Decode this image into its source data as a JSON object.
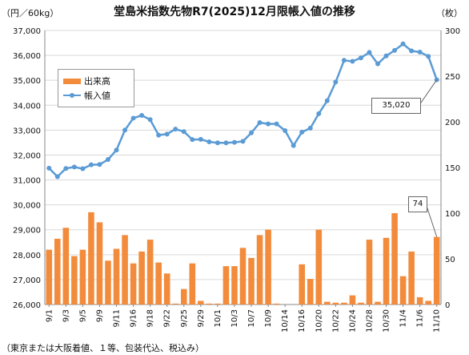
{
  "title": "堂島米指数先物R7(2025)12月限帳入値の推移",
  "left_unit": "（円／60kg）",
  "right_unit": "（枚）",
  "note": "（東京または大阪着値、１等、包装代込、税込み）",
  "legend": {
    "bar_label": "出来高",
    "line_label": "帳入値"
  },
  "callouts": {
    "last_price": "35,020",
    "last_volume": "74"
  },
  "colors": {
    "bar": "#f28c3c",
    "line": "#5b9bd5",
    "grid": "#d9d9d9"
  },
  "chart_data": {
    "type": "bar+line",
    "title": "堂島米指数先物R7(2025)12月限帳入値の推移",
    "x": [
      "9/1",
      "9/2",
      "9/3",
      "9/4",
      "9/5",
      "9/8",
      "9/9",
      "9/10",
      "9/11",
      "9/12",
      "9/16",
      "9/17",
      "9/18",
      "9/19",
      "9/22",
      "9/24",
      "9/25",
      "9/26",
      "9/29",
      "9/30",
      "10/1",
      "10/2",
      "10/3",
      "10/6",
      "10/7",
      "10/8",
      "10/9",
      "10/10",
      "10/14",
      "10/15",
      "10/16",
      "10/17",
      "10/20",
      "10/21",
      "10/22",
      "10/23",
      "10/24",
      "10/27",
      "10/28",
      "10/29",
      "10/30",
      "10/31",
      "11/4",
      "11/5",
      "11/6",
      "11/7",
      "11/10"
    ],
    "x_tick_labels": [
      "9/1",
      "9/3",
      "9/5",
      "9/9",
      "9/11",
      "9/16",
      "9/18",
      "9/22",
      "9/25",
      "9/29",
      "10/1",
      "10/3",
      "10/7",
      "10/9",
      "10/14",
      "10/16",
      "10/20",
      "10/22",
      "10/24",
      "10/28",
      "10/30",
      "11/4",
      "11/6",
      "11/10"
    ],
    "left_axis": {
      "label": "（円／60kg）",
      "ylim": [
        26000,
        37000
      ],
      "ticks": [
        26000,
        27000,
        28000,
        29000,
        30000,
        31000,
        32000,
        33000,
        34000,
        35000,
        36000,
        37000
      ],
      "tick_labels": [
        "26,000",
        "27,000",
        "28,000",
        "29,000",
        "30,000",
        "31,000",
        "32,000",
        "33,000",
        "34,000",
        "35,000",
        "36,000",
        "37,000"
      ]
    },
    "right_axis": {
      "label": "（枚）",
      "ylim": [
        0,
        300
      ],
      "ticks": [
        0,
        50,
        100,
        150,
        200,
        250,
        300
      ]
    },
    "grid": true,
    "legend_position": "top-left",
    "series": [
      {
        "name": "出来高",
        "type": "bar",
        "axis": "right",
        "values": [
          60,
          72,
          84,
          53,
          60,
          101,
          90,
          48,
          61,
          76,
          45,
          58,
          71,
          46,
          34,
          1,
          17,
          45,
          4,
          1,
          1,
          42,
          42,
          62,
          51,
          76,
          82,
          1,
          0,
          0,
          44,
          28,
          82,
          3,
          2,
          2,
          10,
          2,
          71,
          3,
          73,
          100,
          31,
          58,
          8,
          4,
          74
        ]
      },
      {
        "name": "帳入値",
        "type": "line",
        "axis": "left",
        "values": [
          31470,
          31130,
          31460,
          31520,
          31450,
          31610,
          31620,
          31820,
          32200,
          33000,
          33480,
          33590,
          33420,
          32800,
          32840,
          33040,
          32940,
          32620,
          32630,
          32530,
          32490,
          32490,
          32510,
          32550,
          32890,
          33300,
          33250,
          33250,
          32980,
          32380,
          32920,
          33080,
          33660,
          34180,
          34930,
          35800,
          35760,
          35900,
          36120,
          35660,
          35980,
          36200,
          36460,
          36180,
          36130,
          35960,
          35020
        ]
      }
    ]
  }
}
